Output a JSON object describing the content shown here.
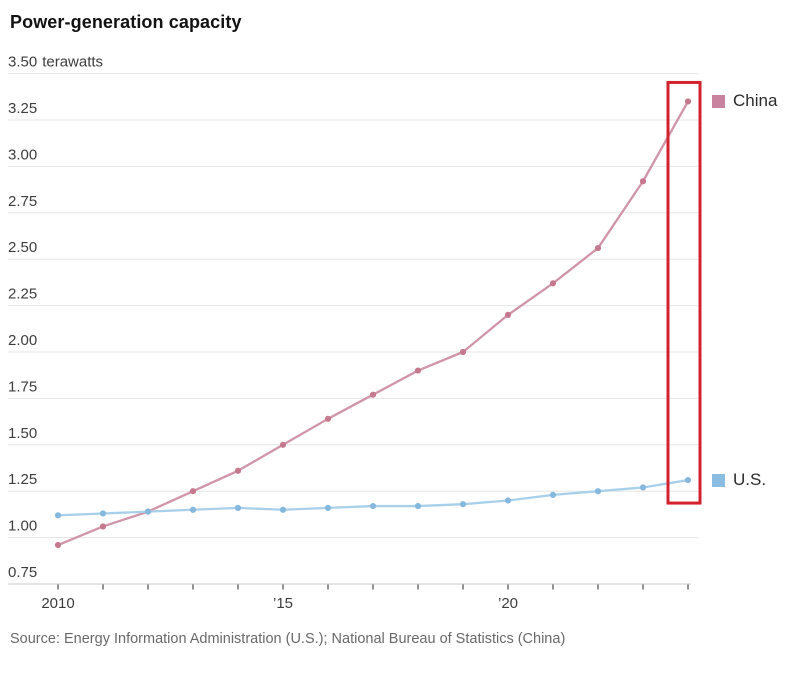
{
  "title": "Power-generation capacity",
  "source": "Source: Energy Information Administration (U.S.); National Bureau of Statistics (China)",
  "colors": {
    "china_line": "#d095a8",
    "china_point": "#c5798f",
    "china_swatch": "#c9839e",
    "us_line": "#a9d0ea",
    "us_point": "#86b8de",
    "us_swatch": "#8bbde2",
    "highlight_red": "#d3212d",
    "gridline": "#e6e6e6",
    "axis_line": "#c9c9c9",
    "tick_mark": "#555555",
    "tick_label": "#3d3d3d"
  },
  "chart_data": {
    "type": "line",
    "title": "Power-generation capacity",
    "unit_label": "terawatts",
    "ylabel": "",
    "xlabel": "",
    "ylim": [
      0.75,
      3.5
    ],
    "grid": "horizontal",
    "legend_position": "right-of-line-ends",
    "x": [
      2010,
      2011,
      2012,
      2013,
      2014,
      2015,
      2016,
      2017,
      2018,
      2019,
      2020,
      2021,
      2022,
      2023,
      2024
    ],
    "x_tick_labels": [
      "2010",
      "",
      "",
      "",
      "",
      "’15",
      "",
      "",
      "",
      "",
      "’20",
      "",
      "",
      "",
      ""
    ],
    "y_ticks": [
      "3.50",
      "3.25",
      "3.00",
      "2.75",
      "2.50",
      "2.25",
      "2.00",
      "1.75",
      "1.50",
      "1.25",
      "1.00",
      "0.75"
    ],
    "series": [
      {
        "name": "China",
        "values": [
          0.96,
          1.06,
          1.14,
          1.25,
          1.36,
          1.5,
          1.64,
          1.77,
          1.9,
          2.0,
          2.2,
          2.37,
          2.56,
          2.92,
          3.35
        ]
      },
      {
        "name": "U.S.",
        "values": [
          1.12,
          1.13,
          1.14,
          1.15,
          1.16,
          1.15,
          1.16,
          1.17,
          1.17,
          1.18,
          1.2,
          1.23,
          1.25,
          1.27,
          1.31
        ]
      }
    ],
    "legend": [
      {
        "label": "China"
      },
      {
        "label": "U.S."
      }
    ],
    "highlight_box": {
      "year": 2024
    }
  }
}
